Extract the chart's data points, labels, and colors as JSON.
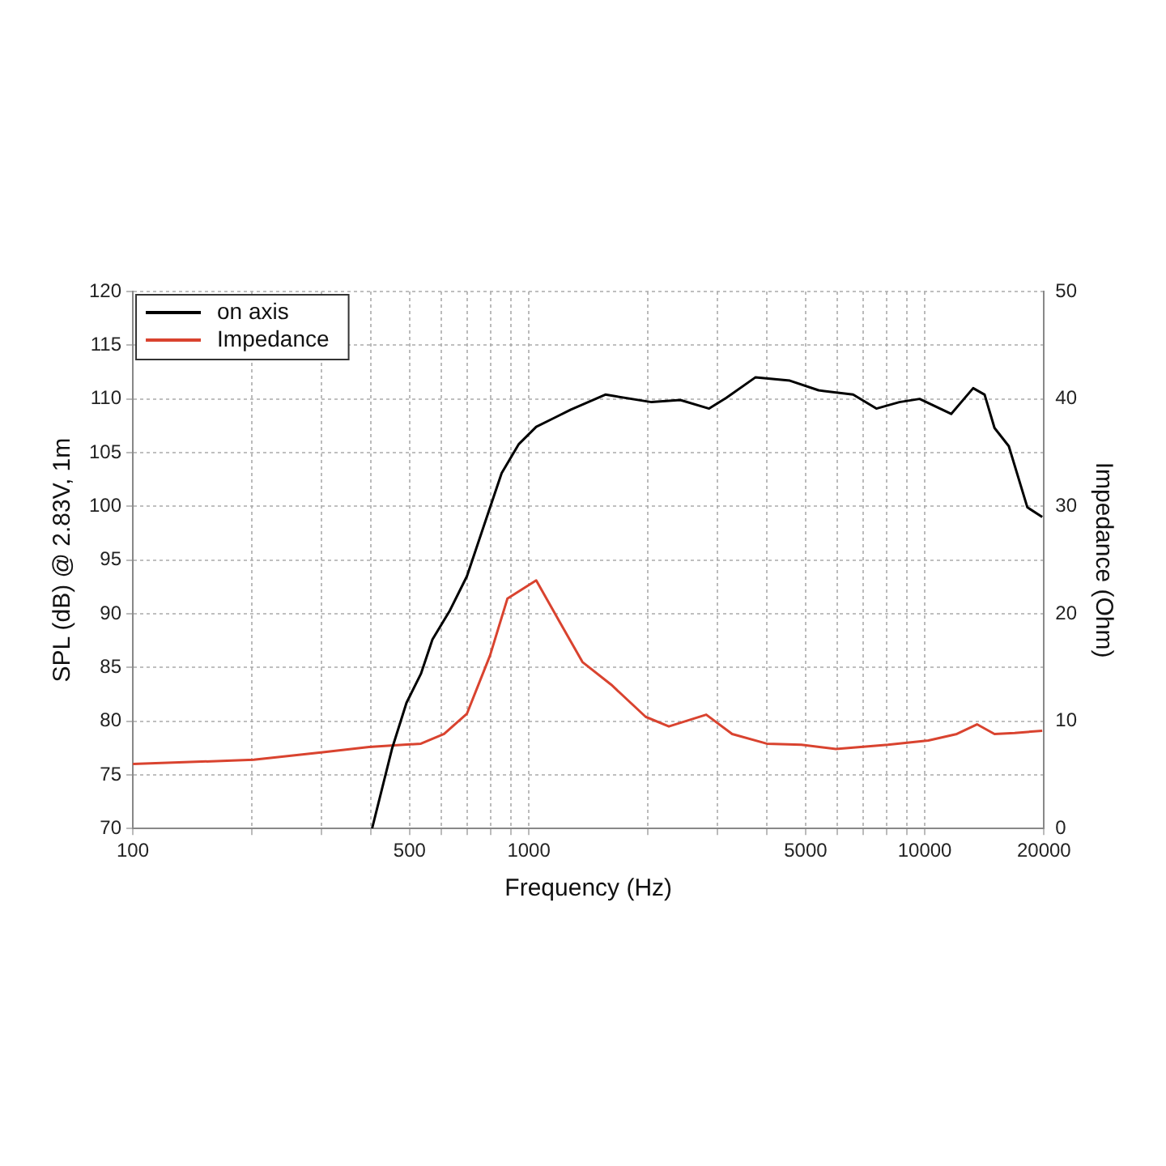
{
  "chart_data": {
    "type": "line",
    "xlabel": "Frequency (Hz)",
    "ylabel": "SPL (dB) @ 2.83V, 1m",
    "y2label": "Impedance (Ohm)",
    "log": "x",
    "grid": true,
    "legend": "top left",
    "marker": "none",
    "line_style": "solid",
    "xlim": [
      100,
      20000
    ],
    "xticks": [
      100,
      {
        "value": 200,
        "label": null
      },
      {
        "value": 300,
        "label": null
      },
      {
        "value": 400,
        "label": null
      },
      500,
      {
        "value": 600,
        "label": null
      },
      {
        "value": 700,
        "label": null
      },
      {
        "value": 800,
        "label": null
      },
      {
        "value": 900,
        "label": null
      },
      1000,
      {
        "value": 2000,
        "label": null
      },
      {
        "value": 3000,
        "label": null
      },
      {
        "value": 4000,
        "label": null
      },
      5000,
      {
        "value": 6000,
        "label": null
      },
      {
        "value": 7000,
        "label": null
      },
      {
        "value": 8000,
        "label": null
      },
      {
        "value": 9000,
        "label": null
      },
      10000,
      20000
    ],
    "ylim": [
      70,
      120
    ],
    "yticks": [
      70,
      75,
      80,
      85,
      90,
      95,
      100,
      105,
      110,
      115,
      120
    ],
    "y2lim": [
      0,
      50
    ],
    "y2ticks": [
      0,
      10,
      20,
      30,
      40,
      50
    ],
    "series": [
      {
        "name": "on axis",
        "color": "#000000",
        "x": [
          402,
          452,
          491,
          534,
          571,
          632,
          698,
          772,
          854,
          944,
          1044,
          1155,
          1277,
          1561,
          2042,
          2413,
          2853,
          3155,
          3733,
          4563,
          5393,
          6592,
          7547,
          8625,
          9704,
          11660,
          13250,
          14160,
          15000,
          16300,
          18160,
          19800
        ],
        "values": [
          70,
          77.5,
          81.7,
          84.4,
          87.6,
          90.3,
          93.5,
          98.3,
          103.1,
          105.8,
          107.4,
          108.2,
          109,
          110.4,
          109.7,
          109.9,
          109.1,
          110.1,
          112,
          111.7,
          110.8,
          110.4,
          109.1,
          109.7,
          110,
          108.6,
          111,
          110.4,
          107.3,
          105.6,
          99.9,
          99
        ]
      },
      {
        "name": "Impedance",
        "color": "#d9432f",
        "axis": "y2",
        "x": [
          100,
          202,
          302,
          395,
          534,
          611,
          698,
          798,
          883,
          1044,
          1194,
          1366,
          1614,
          1973,
          2258,
          2806,
          3263,
          3990,
          4878,
          5966,
          8070,
          10210,
          12050,
          13550,
          15000,
          16870,
          19800
        ],
        "values": [
          6,
          6.4,
          7.1,
          7.6,
          7.9,
          8.8,
          10.7,
          16.1,
          21.4,
          23.1,
          19.3,
          15.5,
          13.4,
          10.4,
          9.5,
          10.6,
          8.8,
          7.9,
          7.8,
          7.4,
          7.8,
          8.2,
          8.8,
          9.7,
          8.8,
          8.9,
          9.1
        ]
      }
    ]
  }
}
